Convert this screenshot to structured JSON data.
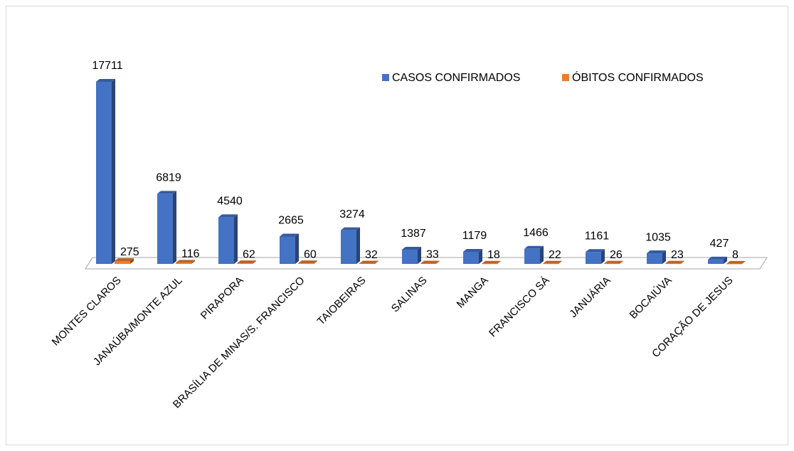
{
  "chart_data": {
    "type": "bar",
    "categories": [
      "MONTES CLAROS",
      "JANAÚBA/MONTE AZUL",
      "PIRAPORA",
      "BRASÍLIA DE MINAS/S. FRANCISCO",
      "TAIOBEIRAS",
      "SALINAS",
      "MANGA",
      "FRANCISCO SÁ",
      "JANUÁRIA",
      "BOCAIÚVA",
      "CORAÇÃO DE JESUS"
    ],
    "series": [
      {
        "name": "CASOS CONFIRMADOS",
        "color": "#4472c4",
        "values": [
          17711,
          6819,
          4540,
          2665,
          3274,
          1387,
          1179,
          1466,
          1161,
          1035,
          427
        ]
      },
      {
        "name": "ÓBITOS CONFIRMADOS",
        "color": "#ed7d31",
        "values": [
          275,
          116,
          62,
          60,
          32,
          33,
          18,
          22,
          26,
          23,
          8
        ]
      }
    ],
    "legend": "top-right"
  }
}
